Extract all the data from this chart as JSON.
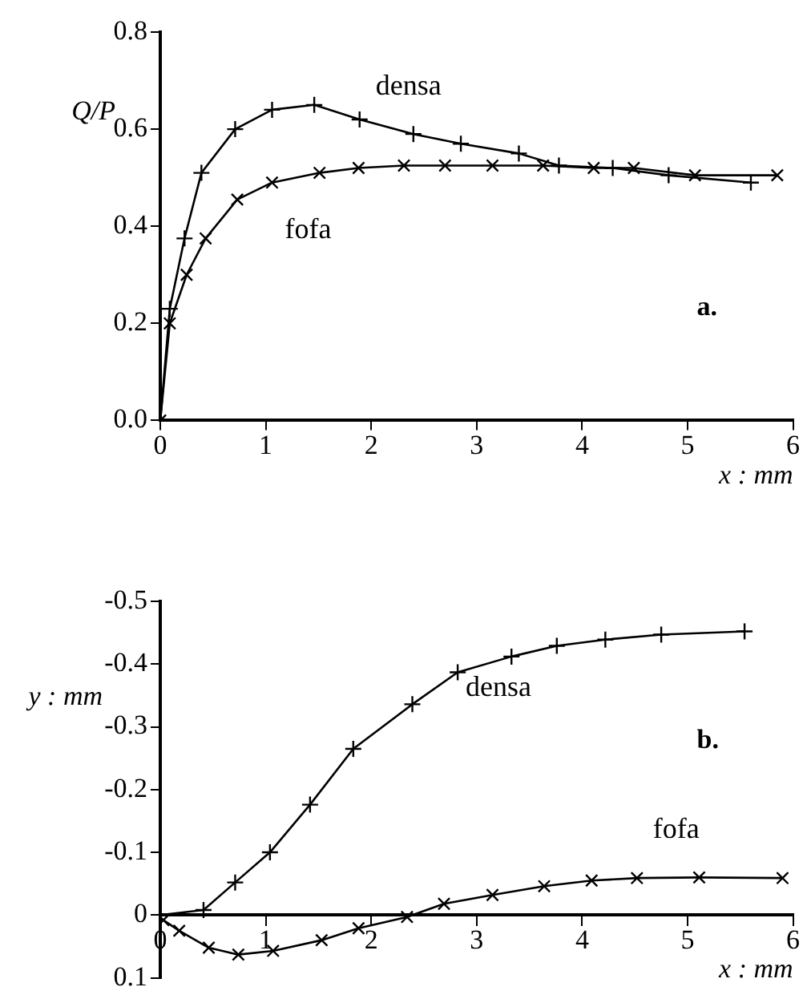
{
  "chart_data": [
    {
      "type": "line",
      "xlabel": "x : mm",
      "ylabel": "Q/P",
      "xlim": [
        0,
        6
      ],
      "xticks": [
        0,
        1,
        2,
        3,
        4,
        5,
        6
      ],
      "ylim": [
        0,
        0.8
      ],
      "yticks": [
        {
          "value": 0,
          "label": "0.0"
        },
        0.2,
        0.4,
        0.6,
        0.8
      ],
      "grid": false,
      "legend": false,
      "marker": "cross",
      "line_style": "solid",
      "annotations": [
        "a."
      ],
      "series": [
        {
          "name": "densa",
          "color": "#000000",
          "x": [
            0,
            0.09,
            0.23,
            0.39,
            0.71,
            1.06,
            1.46,
            1.89,
            2.4,
            2.85,
            3.4,
            3.78,
            4.29,
            4.82,
            5.6
          ],
          "values": [
            0,
            0.23,
            0.375,
            0.51,
            0.6,
            0.64,
            0.65,
            0.62,
            0.59,
            0.57,
            0.55,
            0.525,
            0.52,
            0.505,
            0.49
          ]
        },
        {
          "name": "fofa",
          "color": "#000000",
          "x": [
            0,
            0.09,
            0.25,
            0.43,
            0.73,
            1.06,
            1.51,
            1.88,
            2.31,
            2.7,
            3.15,
            3.63,
            4.11,
            4.49,
            5.07,
            5.85
          ],
          "values": [
            0,
            0.2,
            0.3,
            0.375,
            0.455,
            0.49,
            0.51,
            0.52,
            0.525,
            0.525,
            0.525,
            0.525,
            0.52,
            0.52,
            0.505,
            0.505
          ]
        }
      ]
    },
    {
      "type": "line",
      "xlabel": "x : mm",
      "ylabel": "y : mm",
      "xlim": [
        0,
        6
      ],
      "xticks": [
        0,
        1,
        2,
        3,
        4,
        5,
        6
      ],
      "ylim": [
        0.1,
        -0.5
      ],
      "yticks": [
        -0.5,
        -0.4,
        -0.3,
        -0.2,
        -0.1,
        0,
        0.1
      ],
      "grid": false,
      "legend": false,
      "marker": "cross",
      "line_style": "solid",
      "annotations": [
        "b."
      ],
      "series": [
        {
          "name": "densa",
          "color": "#000000",
          "x": [
            0,
            0.41,
            0.71,
            1.04,
            1.42,
            1.83,
            2.39,
            2.82,
            3.33,
            3.76,
            4.22,
            4.75,
            5.54
          ],
          "values": [
            0,
            -0.008,
            -0.052,
            -0.1,
            -0.176,
            -0.265,
            -0.336,
            -0.387,
            -0.412,
            -0.429,
            -0.439,
            -0.447,
            -0.452
          ]
        },
        {
          "name": "fofa",
          "color": "#000000",
          "x": [
            0.03,
            0.18,
            0.46,
            0.74,
            1.07,
            1.53,
            1.88,
            2.34,
            2.69,
            3.15,
            3.64,
            4.09,
            4.52,
            5.11,
            5.9
          ],
          "values": [
            0.008,
            0.025,
            0.052,
            0.063,
            0.057,
            0.04,
            0.021,
            0.003,
            -0.018,
            -0.032,
            -0.046,
            -0.055,
            -0.059,
            -0.06,
            -0.059
          ]
        }
      ]
    }
  ]
}
